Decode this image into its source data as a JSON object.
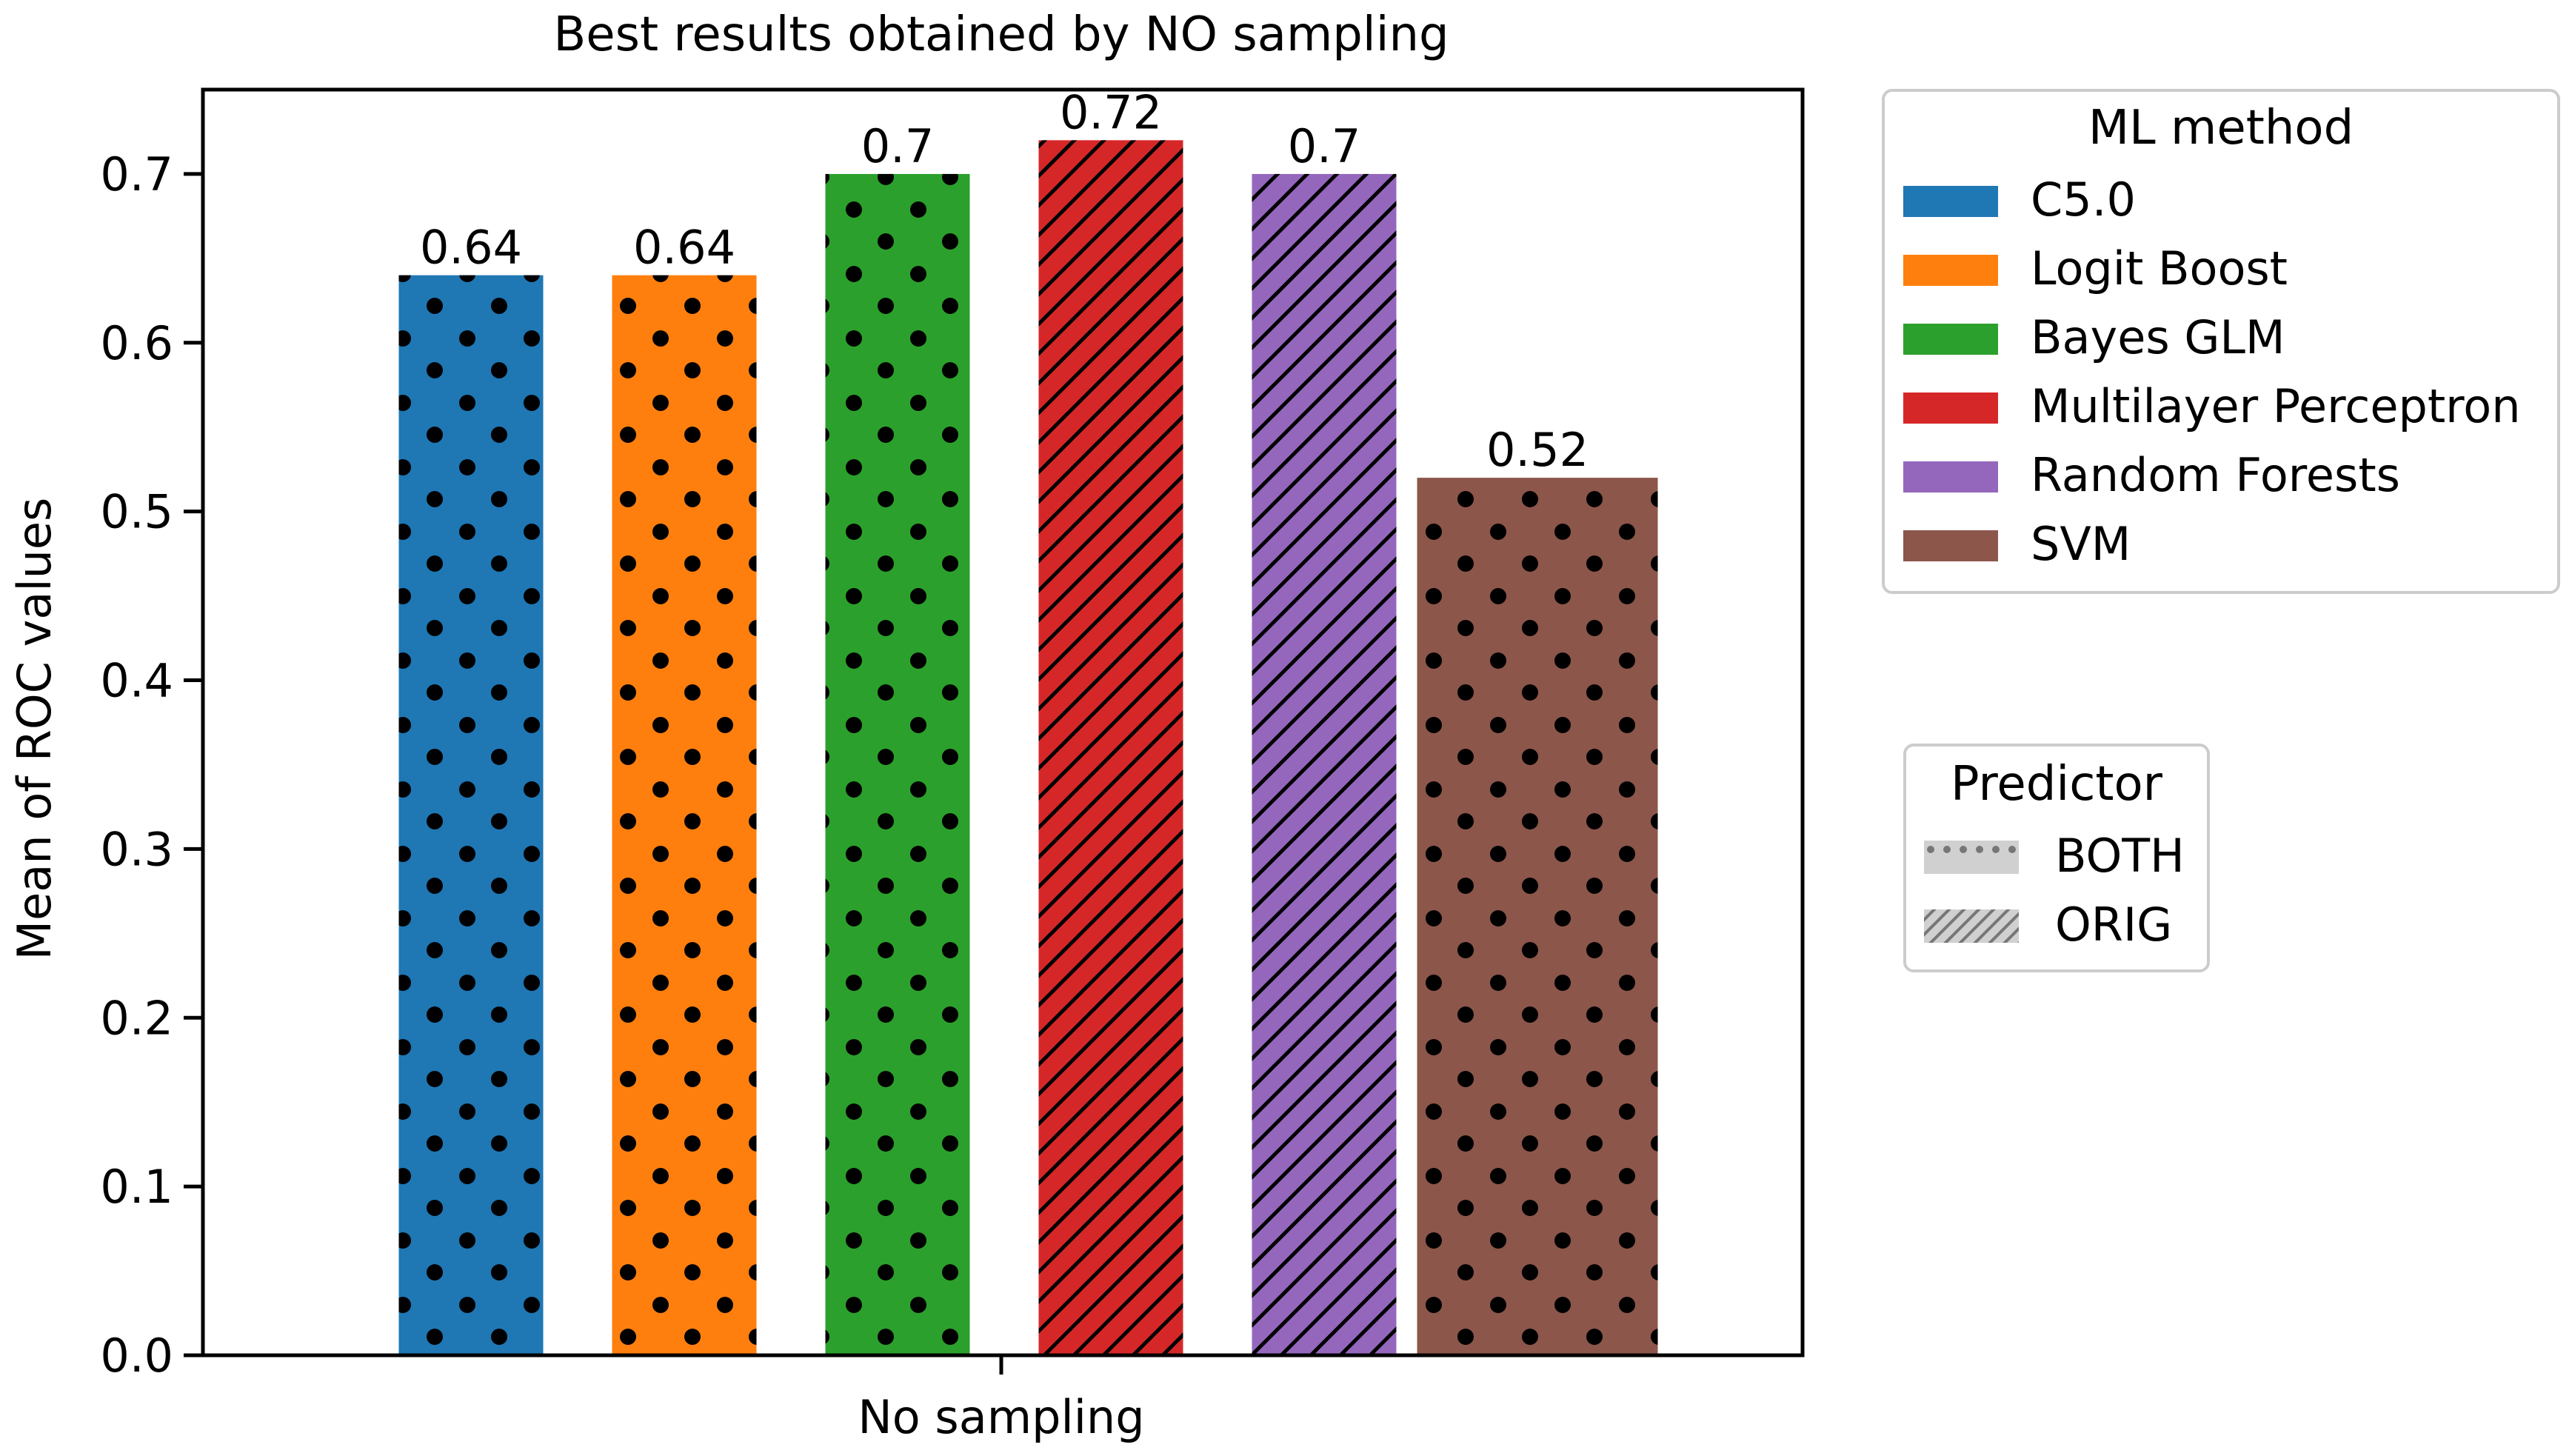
{
  "chart_data": {
    "type": "bar",
    "title": "Best results obtained by NO sampling",
    "xlabel": "",
    "ylabel": "Mean of ROC values",
    "categories": [
      "No sampling"
    ],
    "ylim": [
      0,
      0.75
    ],
    "yticks": [
      "0.0",
      "0.1",
      "0.2",
      "0.3",
      "0.4",
      "0.5",
      "0.6",
      "0.7"
    ],
    "grid": false,
    "series": [
      {
        "name": "C5.0",
        "predictor": "BOTH",
        "value": 0.64,
        "label": "0.64",
        "color": "#1f77b4"
      },
      {
        "name": "Logit Boost",
        "predictor": "BOTH",
        "value": 0.64,
        "label": "0.64",
        "color": "#ff7f0e"
      },
      {
        "name": "Bayes GLM",
        "predictor": "BOTH",
        "value": 0.7,
        "label": "0.7",
        "color": "#2ca02c"
      },
      {
        "name": "Multilayer Perceptron",
        "predictor": "ORIG",
        "value": 0.72,
        "label": "0.72",
        "color": "#d62728"
      },
      {
        "name": "Random Forests",
        "predictor": "ORIG",
        "value": 0.7,
        "label": "0.7",
        "color": "#9467bd"
      },
      {
        "name": "SVM",
        "predictor": "BOTH",
        "value": 0.52,
        "label": "0.52",
        "color": "#8c564b"
      }
    ],
    "legend_method": {
      "title": "ML method",
      "placement": "outside top-right",
      "items": [
        "C5.0",
        "Logit Boost",
        "Bayes GLM",
        "Multilayer Perceptron",
        "Random Forests",
        "SVM"
      ]
    },
    "legend_predictor": {
      "title": "Predictor",
      "placement": "outside middle-right",
      "items": [
        {
          "label": "BOTH",
          "pattern": "dots"
        },
        {
          "label": "ORIG",
          "pattern": "hatch"
        }
      ]
    }
  }
}
